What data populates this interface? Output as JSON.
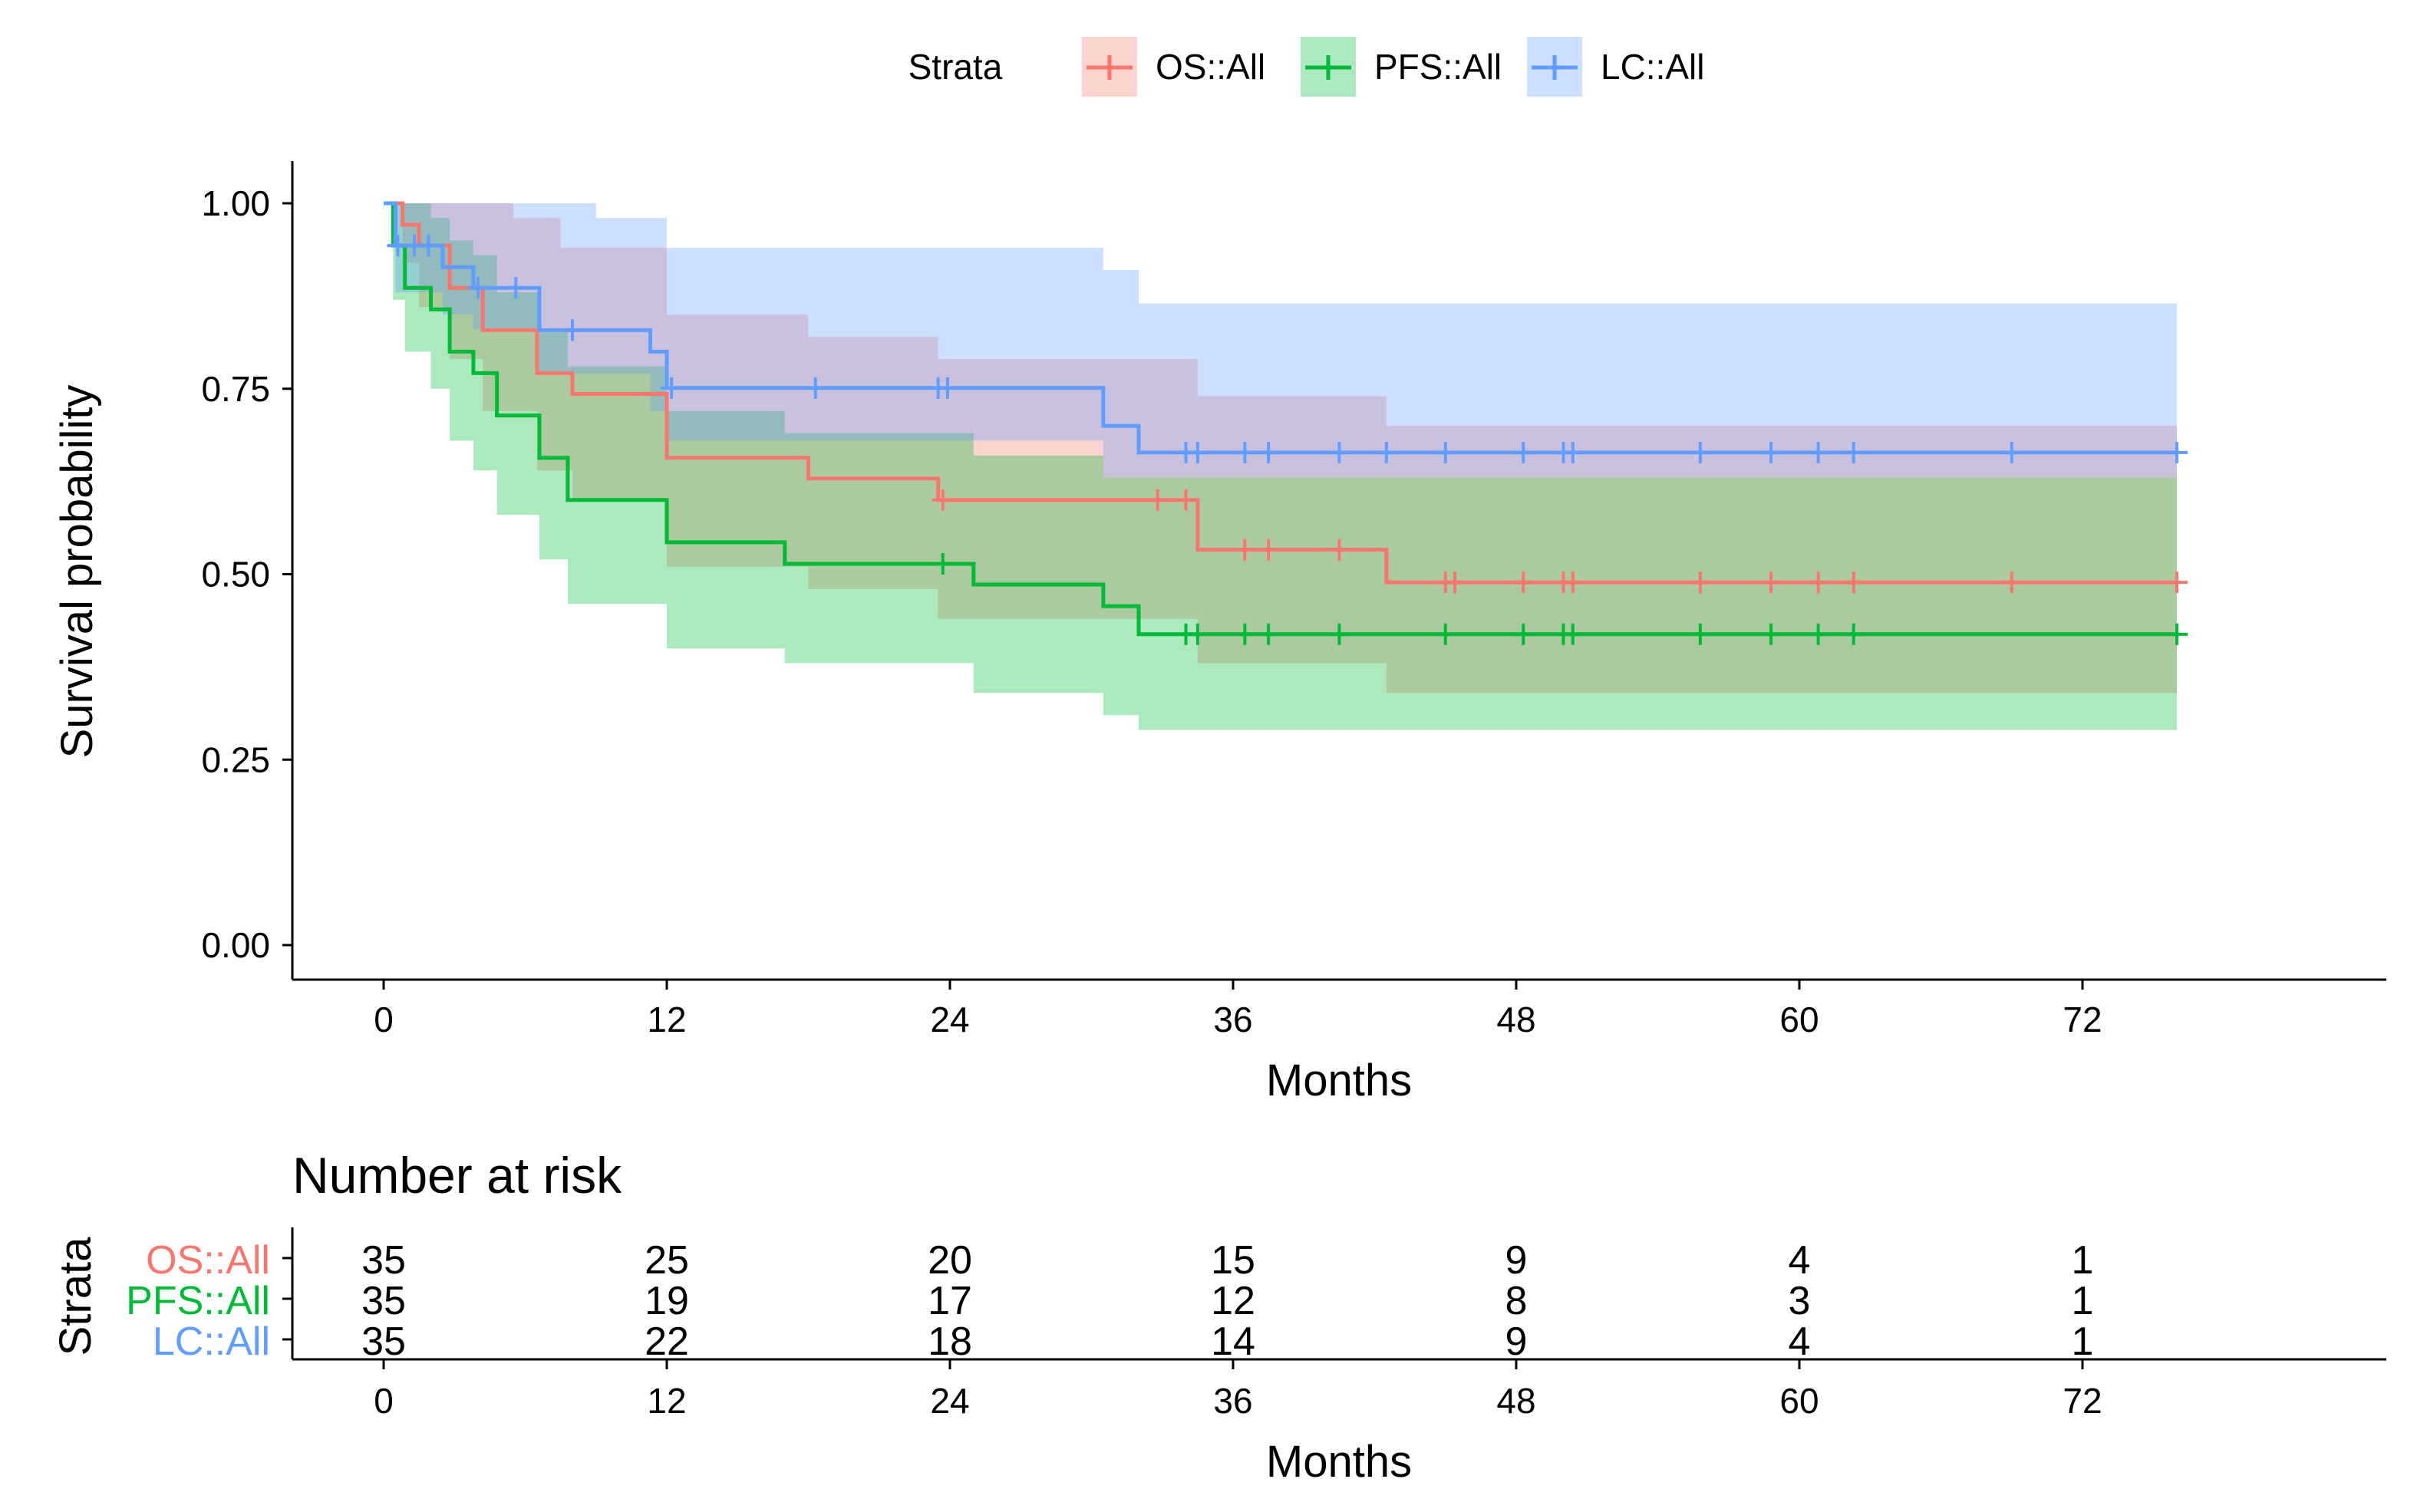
{
  "chart_data": {
    "type": "line",
    "subtype": "kaplan-meier",
    "legend": {
      "title": "Strata",
      "position": "top",
      "entries": [
        "OS::All",
        "PFS::All",
        "LC::All"
      ]
    },
    "xlabel": "Months",
    "ylabel": "Survival probability",
    "xlim": [
      0,
      86
    ],
    "ylim": [
      0,
      1.04
    ],
    "xticks": [
      0,
      12,
      24,
      36,
      48,
      60,
      72
    ],
    "xtick_labels": [
      "0",
      "12",
      "24",
      "36",
      "48",
      "60",
      "72"
    ],
    "yticks": [
      0,
      0.25,
      0.5,
      0.75,
      1.0
    ],
    "ytick_labels": [
      "0.00",
      "0.25",
      "0.50",
      "0.75",
      "1.00"
    ],
    "grid": false,
    "series": [
      {
        "name": "OS::All",
        "color": "#F8766D",
        "steps": [
          [
            0,
            1.0
          ],
          [
            0.8,
            0.971
          ],
          [
            1.5,
            0.943
          ],
          [
            2.8,
            0.886
          ],
          [
            4.2,
            0.829
          ],
          [
            6.5,
            0.771
          ],
          [
            8,
            0.743
          ],
          [
            12,
            0.657
          ],
          [
            18,
            0.629
          ],
          [
            23.5,
            0.6
          ],
          [
            34.5,
            0.533
          ],
          [
            42.5,
            0.489
          ],
          [
            76,
            0.489
          ]
        ],
        "lower": [
          [
            0,
            1.0
          ],
          [
            0.8,
            0.92
          ],
          [
            1.5,
            0.86
          ],
          [
            2.8,
            0.79
          ],
          [
            4.2,
            0.72
          ],
          [
            6.5,
            0.64
          ],
          [
            8,
            0.6
          ],
          [
            12,
            0.51
          ],
          [
            18,
            0.48
          ],
          [
            23.5,
            0.44
          ],
          [
            34.5,
            0.38
          ],
          [
            42.5,
            0.34
          ],
          [
            76,
            0.34
          ]
        ],
        "upper": [
          [
            0,
            1.0
          ],
          [
            1.5,
            1.0
          ],
          [
            2.8,
            1.0
          ],
          [
            5.5,
            0.98
          ],
          [
            7.5,
            0.94
          ],
          [
            12,
            0.85
          ],
          [
            18,
            0.82
          ],
          [
            23.5,
            0.79
          ],
          [
            34.5,
            0.74
          ],
          [
            42.5,
            0.7
          ],
          [
            76,
            0.7
          ]
        ],
        "censored": [
          23.7,
          32.8,
          34,
          36.5,
          37.5,
          40.5,
          45,
          45.4,
          48.3,
          50,
          50.4,
          55.8,
          58.8,
          60.8,
          62.3,
          69,
          76
        ]
      },
      {
        "name": "PFS::All",
        "color": "#00BA38",
        "steps": [
          [
            0,
            1.0
          ],
          [
            0.4,
            0.943
          ],
          [
            0.9,
            0.886
          ],
          [
            2,
            0.857
          ],
          [
            2.8,
            0.8
          ],
          [
            3.8,
            0.771
          ],
          [
            4.8,
            0.714
          ],
          [
            6.6,
            0.657
          ],
          [
            7.8,
            0.6
          ],
          [
            12,
            0.543
          ],
          [
            17,
            0.514
          ],
          [
            25,
            0.486
          ],
          [
            30.5,
            0.457
          ],
          [
            32,
            0.419
          ],
          [
            76,
            0.419
          ]
        ],
        "lower": [
          [
            0,
            1.0
          ],
          [
            0.4,
            0.87
          ],
          [
            0.9,
            0.8
          ],
          [
            2,
            0.75
          ],
          [
            2.8,
            0.68
          ],
          [
            3.8,
            0.64
          ],
          [
            4.8,
            0.58
          ],
          [
            6.6,
            0.52
          ],
          [
            7.8,
            0.46
          ],
          [
            12,
            0.4
          ],
          [
            17,
            0.38
          ],
          [
            25,
            0.34
          ],
          [
            30.5,
            0.31
          ],
          [
            32,
            0.29
          ],
          [
            76,
            0.29
          ]
        ],
        "upper": [
          [
            0,
            1.0
          ],
          [
            0.9,
            1.0
          ],
          [
            2,
            0.98
          ],
          [
            2.8,
            0.95
          ],
          [
            3.8,
            0.93
          ],
          [
            4.8,
            0.88
          ],
          [
            6.6,
            0.83
          ],
          [
            7.8,
            0.78
          ],
          [
            12,
            0.72
          ],
          [
            17,
            0.69
          ],
          [
            25,
            0.66
          ],
          [
            30.5,
            0.63
          ],
          [
            32,
            0.63
          ],
          [
            76,
            0.63
          ]
        ],
        "censored": [
          23.7,
          34,
          34.5,
          36.5,
          37.5,
          40.5,
          45,
          48.3,
          50,
          50.4,
          55.8,
          58.8,
          60.8,
          62.3,
          76
        ]
      },
      {
        "name": "LC::All",
        "color": "#619CFF",
        "steps": [
          [
            0,
            1.0
          ],
          [
            0.5,
            0.943
          ],
          [
            2.5,
            0.914
          ],
          [
            3.8,
            0.886
          ],
          [
            6.6,
            0.829
          ],
          [
            11.3,
            0.8
          ],
          [
            12,
            0.751
          ],
          [
            30.5,
            0.7
          ],
          [
            32,
            0.664
          ],
          [
            76,
            0.664
          ]
        ],
        "lower": [
          [
            0,
            1.0
          ],
          [
            0.5,
            0.88
          ],
          [
            2.5,
            0.85
          ],
          [
            3.8,
            0.83
          ],
          [
            6.6,
            0.77
          ],
          [
            11.3,
            0.72
          ],
          [
            12,
            0.68
          ],
          [
            30.5,
            0.63
          ],
          [
            32,
            0.63
          ],
          [
            76,
            0.63
          ]
        ],
        "upper": [
          [
            0,
            1.0
          ],
          [
            6.6,
            1.0
          ],
          [
            9,
            0.98
          ],
          [
            12,
            0.94
          ],
          [
            30.5,
            0.91
          ],
          [
            32,
            0.865
          ],
          [
            76,
            0.865
          ]
        ],
        "censored": [
          0.6,
          1.3,
          1.9,
          4,
          5.6,
          8,
          12.2,
          18.3,
          23.5,
          23.9,
          34,
          34.5,
          36.5,
          37.5,
          40.5,
          42.5,
          45,
          48.3,
          50,
          50.4,
          55.8,
          58.8,
          60.8,
          62.3,
          69,
          76
        ]
      }
    ],
    "risk_table": {
      "title": "Number at risk",
      "ylabel": "Strata",
      "xlabel": "Months",
      "time_points": [
        0,
        12,
        24,
        36,
        48,
        60,
        72
      ],
      "rows": [
        {
          "name": "OS::All",
          "color": "#F8766D",
          "counts": [
            "35",
            "25",
            "20",
            "15",
            "9",
            "4",
            "1"
          ]
        },
        {
          "name": "PFS::All",
          "color": "#00BA38",
          "counts": [
            "35",
            "19",
            "17",
            "12",
            "8",
            "3",
            "1"
          ]
        },
        {
          "name": "LC::All",
          "color": "#619CFF",
          "counts": [
            "35",
            "22",
            "18",
            "14",
            "9",
            "4",
            "1"
          ]
        }
      ]
    }
  }
}
